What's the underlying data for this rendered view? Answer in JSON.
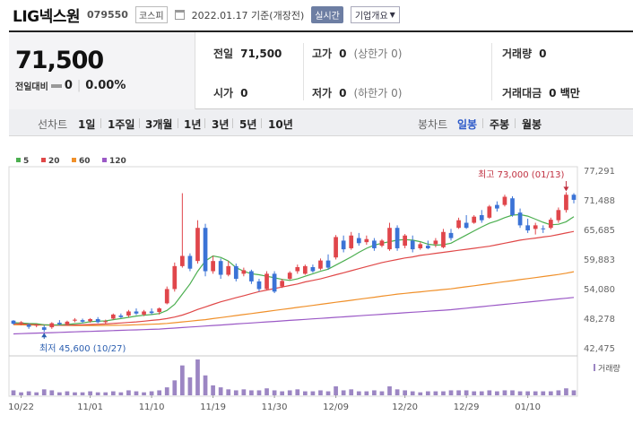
{
  "header": {
    "name": "LIG넥스원",
    "code": "079550",
    "market": "코스피",
    "date": "2022.01.17 기준(개장전)",
    "realtime": "실시간",
    "company_info": "기업개요"
  },
  "summary": {
    "price": "71,500",
    "change_label": "전일대비",
    "change": "0",
    "change_pct": "0.00%",
    "prev_close_label": "전일",
    "prev_close": "71,500",
    "high_label": "고가",
    "high": "0",
    "high_note": "(상한가 0)",
    "volume_label": "거래량",
    "volume": "0",
    "open_label": "시가",
    "open": "0",
    "low_label": "저가",
    "low": "0",
    "low_note": "(하한가 0)",
    "amount_label": "거래대금",
    "amount": "0 백만"
  },
  "periods": {
    "line_label": "선차트",
    "line_items": [
      "1일",
      "1주일",
      "3개월",
      "1년",
      "3년",
      "5년",
      "10년"
    ],
    "candle_label": "봉차트",
    "candle_items": [
      "일봉",
      "주봉",
      "월봉"
    ],
    "active": "일봉"
  },
  "colors": {
    "up": "#e0464b",
    "down": "#3b73d6",
    "ma5": "#4caf50",
    "ma20": "#e04848",
    "ma60": "#f0902a",
    "ma120": "#9b59c6",
    "volume": "#9c86c3"
  },
  "chart_data": {
    "type": "candlestick",
    "legend": [
      "5",
      "20",
      "60",
      "120"
    ],
    "y_ticks": [
      "77,291",
      "71,488",
      "65,685",
      "59,883",
      "54,080",
      "48,278",
      "42,475"
    ],
    "ylim": [
      42475,
      77291
    ],
    "x_ticks": [
      "10/22",
      "11/01",
      "11/10",
      "11/19",
      "11/30",
      "12/09",
      "12/20",
      "12/29",
      "01/10"
    ],
    "high_annotation": "최고 73,000 (01/13)",
    "low_annotation": "최저 45,600 (10/27)",
    "volume_label": "거래량",
    "candles": [
      [
        47800,
        47900,
        47000,
        47200
      ],
      [
        47300,
        47700,
        46900,
        47500
      ],
      [
        47000,
        47300,
        46200,
        46600
      ],
      [
        46900,
        47200,
        46500,
        47000
      ],
      [
        46500,
        46900,
        45600,
        46000
      ],
      [
        46500,
        47500,
        46200,
        47300
      ],
      [
        47400,
        47900,
        46900,
        47100
      ],
      [
        47000,
        47800,
        46900,
        47600
      ],
      [
        47800,
        48300,
        47500,
        48000
      ],
      [
        47900,
        48200,
        47300,
        47600
      ],
      [
        47700,
        48300,
        47400,
        48100
      ],
      [
        48100,
        48500,
        47300,
        47500
      ],
      [
        47500,
        48000,
        47200,
        47700
      ],
      [
        48200,
        49200,
        48000,
        49000
      ],
      [
        48800,
        49200,
        48300,
        48500
      ],
      [
        48800,
        49900,
        48500,
        49600
      ],
      [
        49600,
        50200,
        48900,
        49200
      ],
      [
        49000,
        49900,
        48700,
        49600
      ],
      [
        49600,
        50200,
        49000,
        49300
      ],
      [
        49500,
        50400,
        49000,
        50200
      ],
      [
        51200,
        54500,
        51000,
        54000
      ],
      [
        54000,
        59200,
        53500,
        58500
      ],
      [
        58500,
        72800,
        58200,
        60500
      ],
      [
        60500,
        61000,
        57500,
        58000
      ],
      [
        59500,
        67500,
        59000,
        66000
      ],
      [
        66000,
        66800,
        56500,
        57500
      ],
      [
        57500,
        60500,
        57000,
        59500
      ],
      [
        59500,
        60000,
        56000,
        56800
      ],
      [
        56800,
        59500,
        56500,
        58500
      ],
      [
        58500,
        59000,
        55500,
        56000
      ],
      [
        57000,
        58200,
        56500,
        57700
      ],
      [
        57500,
        57800,
        55000,
        55500
      ],
      [
        55500,
        56000,
        53500,
        54000
      ],
      [
        54000,
        57500,
        53800,
        57000
      ],
      [
        57000,
        57500,
        53200,
        53500
      ],
      [
        54500,
        56000,
        54200,
        55600
      ],
      [
        56000,
        57500,
        55800,
        57200
      ],
      [
        57500,
        58800,
        57000,
        58300
      ],
      [
        57000,
        58800,
        56800,
        58500
      ],
      [
        58300,
        58800,
        57200,
        57500
      ],
      [
        58000,
        60000,
        57700,
        59600
      ],
      [
        59600,
        60800,
        57800,
        58200
      ],
      [
        60200,
        64600,
        59800,
        64200
      ],
      [
        63500,
        64500,
        61200,
        61800
      ],
      [
        62000,
        65200,
        61700,
        64500
      ],
      [
        64000,
        65000,
        62500,
        63000
      ],
      [
        63200,
        64500,
        62700,
        63800
      ],
      [
        63500,
        64000,
        61500,
        62000
      ],
      [
        62500,
        63800,
        62200,
        63500
      ],
      [
        61800,
        67000,
        61500,
        66000
      ],
      [
        66000,
        66500,
        61500,
        62000
      ],
      [
        62500,
        64800,
        62000,
        64500
      ],
      [
        63500,
        64500,
        61200,
        61800
      ],
      [
        62000,
        63200,
        61700,
        62800
      ],
      [
        62500,
        63500,
        61800,
        62000
      ],
      [
        62800,
        64000,
        62200,
        63500
      ],
      [
        62200,
        65800,
        62000,
        65200
      ],
      [
        65000,
        65800,
        63500,
        64000
      ],
      [
        66000,
        68000,
        65800,
        67500
      ],
      [
        67000,
        68500,
        65800,
        66000
      ],
      [
        67000,
        68500,
        66800,
        68200
      ],
      [
        68500,
        69500,
        67000,
        67500
      ],
      [
        68000,
        70500,
        67800,
        70200
      ],
      [
        70500,
        71200,
        69200,
        69800
      ],
      [
        70500,
        72500,
        70200,
        72100
      ],
      [
        71800,
        72200,
        68200,
        68500
      ],
      [
        69000,
        69800,
        66000,
        66500
      ],
      [
        66500,
        67800,
        65000,
        65500
      ],
      [
        65800,
        67000,
        64700,
        66500
      ],
      [
        65900,
        66500,
        65000,
        65800
      ],
      [
        66000,
        68000,
        65700,
        67600
      ],
      [
        67500,
        70000,
        67000,
        69500
      ],
      [
        69500,
        73000,
        69000,
        72500
      ],
      [
        72500,
        72800,
        70800,
        71500
      ]
    ],
    "ma5": [
      47400,
      47350,
      47250,
      47200,
      47000,
      46950,
      47000,
      47050,
      47200,
      47350,
      47600,
      47700,
      47750,
      48000,
      48200,
      48450,
      48700,
      48850,
      49000,
      49200,
      49800,
      51000,
      53000,
      55000,
      57500,
      59500,
      60500,
      60200,
      59500,
      58200,
      57500,
      57000,
      56800,
      56500,
      56200,
      55900,
      55700,
      56000,
      56500,
      57000,
      57500,
      57900,
      58700,
      59500,
      60300,
      61200,
      62000,
      62600,
      63000,
      63300,
      63600,
      63700,
      63600,
      63300,
      62800,
      62600,
      62700,
      63000,
      63800,
      64600,
      65400,
      66200,
      66900,
      67400,
      68000,
      68500,
      68600,
      68300,
      67700,
      67100,
      66600,
      66700,
      67200,
      68200
    ],
    "ma20": [
      47200,
      47150,
      47100,
      47050,
      47000,
      46950,
      46900,
      46900,
      46950,
      47000,
      47050,
      47100,
      47150,
      47250,
      47350,
      47450,
      47550,
      47700,
      47850,
      48000,
      48200,
      48500,
      48900,
      49400,
      50000,
      50500,
      51000,
      51500,
      51900,
      52300,
      52700,
      53100,
      53500,
      53800,
      54100,
      54400,
      54700,
      55000,
      55400,
      55700,
      56000,
      56400,
      56800,
      57200,
      57600,
      58000,
      58400,
      58800,
      59200,
      59500,
      59800,
      60100,
      60300,
      60600,
      60800,
      61000,
      61200,
      61400,
      61600,
      61800,
      62000,
      62200,
      62400,
      62700,
      63000,
      63300,
      63600,
      63800,
      64000,
      64200,
      64400,
      64700,
      65000,
      65300
    ],
    "ma60": [
      47000,
      46980,
      46960,
      46940,
      46920,
      46900,
      46880,
      46870,
      46860,
      46850,
      46850,
      46860,
      46870,
      46880,
      46900,
      46950,
      47000,
      47050,
      47100,
      47150,
      47250,
      47400,
      47550,
      47700,
      47850,
      48000,
      48200,
      48400,
      48600,
      48800,
      49000,
      49200,
      49400,
      49600,
      49800,
      50000,
      50200,
      50400,
      50600,
      50800,
      51000,
      51200,
      51400,
      51600,
      51800,
      52000,
      52200,
      52400,
      52600,
      52800,
      53000,
      53150,
      53300,
      53450,
      53600,
      53750,
      53900,
      54050,
      54250,
      54450,
      54650,
      54850,
      55050,
      55250,
      55450,
      55650,
      55850,
      56050,
      56250,
      56450,
      56650,
      56850,
      57100,
      57400
    ],
    "ma120": [
      45200,
      45250,
      45300,
      45350,
      45400,
      45450,
      45500,
      45550,
      45600,
      45650,
      45700,
      45750,
      45800,
      45850,
      45900,
      45950,
      46000,
      46050,
      46100,
      46150,
      46250,
      46350,
      46450,
      46550,
      46650,
      46750,
      46850,
      46950,
      47050,
      47150,
      47250,
      47350,
      47450,
      47550,
      47650,
      47750,
      47850,
      47950,
      48050,
      48150,
      48250,
      48350,
      48450,
      48550,
      48650,
      48750,
      48850,
      48950,
      49050,
      49150,
      49250,
      49350,
      49450,
      49550,
      49650,
      49750,
      49850,
      49950,
      50100,
      50250,
      50400,
      50550,
      50700,
      50850,
      51000,
      51150,
      51300,
      51450,
      51600,
      51750,
      51900,
      52050,
      52200,
      52350
    ],
    "volume": [
      5,
      3,
      4,
      3,
      6,
      5,
      3,
      4,
      3,
      3,
      4,
      3,
      3,
      4,
      3,
      5,
      4,
      3,
      4,
      5,
      8,
      15,
      30,
      18,
      36,
      20,
      10,
      8,
      6,
      5,
      6,
      5,
      5,
      7,
      5,
      4,
      5,
      6,
      4,
      4,
      5,
      4,
      9,
      5,
      6,
      4,
      4,
      5,
      4,
      9,
      6,
      5,
      4,
      3,
      4,
      4,
      4,
      5,
      5,
      5,
      4,
      4,
      5,
      4,
      5,
      5,
      4,
      4,
      4,
      4,
      4,
      5,
      7,
      5
    ]
  }
}
